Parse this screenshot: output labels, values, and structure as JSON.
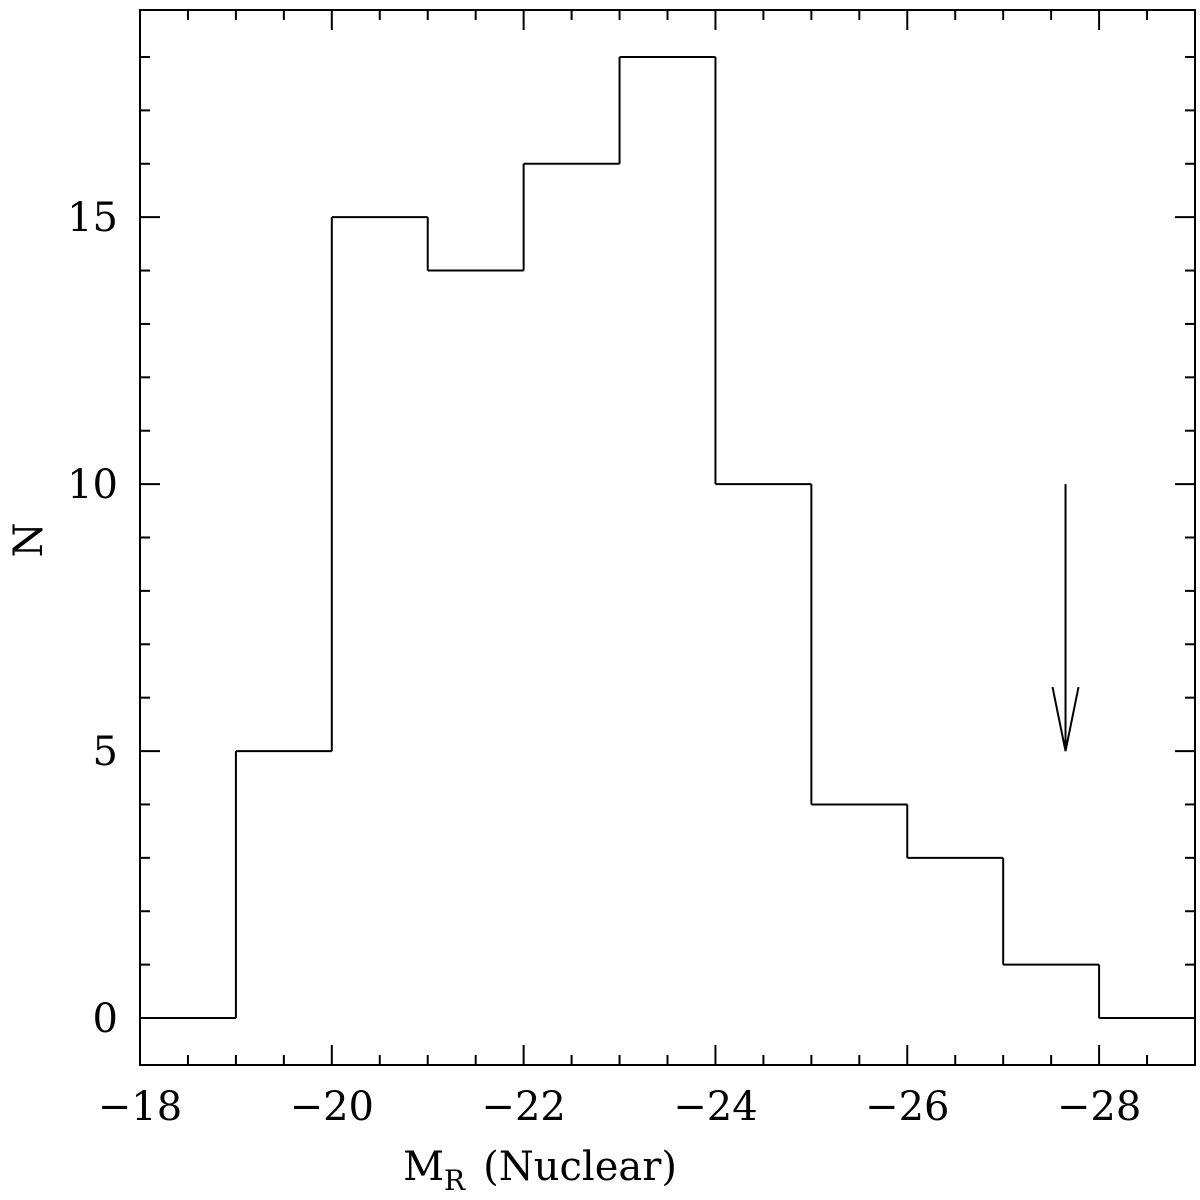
{
  "chart_data": {
    "type": "histogram",
    "xlabel": "M",
    "xlabel_sub": "R",
    "xlabel_rest": "(Nuclear)",
    "ylabel": "N",
    "bins": [
      -18,
      -19,
      -20,
      -21,
      -22,
      -23,
      -24,
      -25,
      -26,
      -27,
      -28,
      -29
    ],
    "values": [
      0,
      5,
      15,
      14,
      16,
      18,
      10,
      4,
      3,
      1,
      0
    ],
    "color": "#000000",
    "xlim": [
      -18,
      -29
    ],
    "ylim": [
      -0.88,
      18.88
    ],
    "xticks": [
      {
        "value": -18,
        "label": "−18"
      },
      {
        "value": -20,
        "label": "−20"
      },
      {
        "value": -22,
        "label": "−22"
      },
      {
        "value": -24,
        "label": "−24"
      },
      {
        "value": -26,
        "label": "−26"
      },
      {
        "value": -28,
        "label": "−28"
      }
    ],
    "x_minor_ticks": [
      -18.5,
      -19,
      -19.5,
      -20.5,
      -21,
      -21.5,
      -22.5,
      -23,
      -23.5,
      -24.5,
      -25,
      -25.5,
      -26.5,
      -27,
      -27.5,
      -28.5
    ],
    "yticks": [
      0,
      5,
      10,
      15
    ],
    "y_minor_ticks": [
      1,
      2,
      3,
      4,
      6,
      7,
      8,
      9,
      11,
      12,
      13,
      14,
      16,
      17,
      18
    ],
    "arrow": {
      "x": -27.65,
      "from": 10,
      "to": 5
    }
  }
}
